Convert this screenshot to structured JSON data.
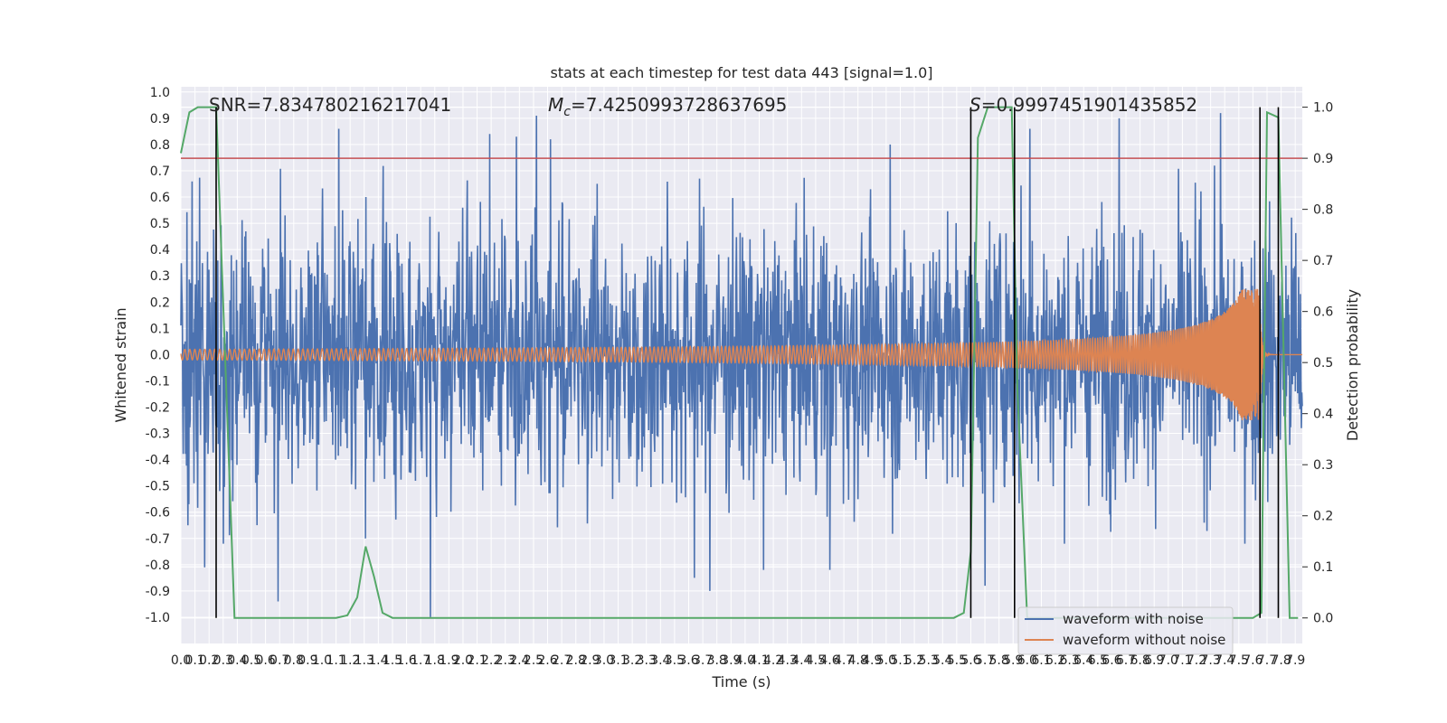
{
  "chart_data": {
    "type": "line",
    "title": "stats at each timestep for test data 443 [signal=1.0]",
    "xlabel": "Time (s)",
    "ylabel": "Whitened strain",
    "ylabel_right": "Detection probability",
    "xlim": [
      0.0,
      7.95
    ],
    "ylim": [
      -1.1,
      1.02
    ],
    "ylim_right": [
      -0.05,
      1.04
    ],
    "xticks": [
      "0.0",
      "0.1",
      "0.2",
      "0.3",
      "0.4",
      "0.5",
      "0.6",
      "0.7",
      "0.8",
      "0.9",
      "1.0",
      "1.1",
      "1.2",
      "1.3",
      "1.4",
      "1.5",
      "1.6",
      "1.7",
      "1.8",
      "1.9",
      "2.0",
      "2.1",
      "2.2",
      "2.3",
      "2.4",
      "2.5",
      "2.6",
      "2.7",
      "2.8",
      "2.9",
      "3.0",
      "3.1",
      "3.2",
      "3.3",
      "3.4",
      "3.5",
      "3.6",
      "3.7",
      "3.8",
      "3.9",
      "4.0",
      "4.1",
      "4.2",
      "4.3",
      "4.4",
      "4.5",
      "4.6",
      "4.7",
      "4.8",
      "4.9",
      "5.0",
      "5.1",
      "5.2",
      "5.3",
      "5.4",
      "5.5",
      "5.6",
      "5.7",
      "5.8",
      "5.9",
      "6.0",
      "6.1",
      "6.2",
      "6.3",
      "6.4",
      "6.5",
      "6.6",
      "6.7",
      "6.8",
      "6.9",
      "7.0",
      "7.1",
      "7.2",
      "7.3",
      "7.4",
      "7.5",
      "7.6",
      "7.7",
      "7.8",
      "7.9"
    ],
    "yticks": [
      "1.0",
      "0.9",
      "0.8",
      "0.7",
      "0.6",
      "0.5",
      "0.4",
      "0.3",
      "0.2",
      "0.1",
      "0.0",
      "-0.1",
      "-0.2",
      "-0.3",
      "-0.4",
      "-0.5",
      "-0.6",
      "-0.7",
      "-0.8",
      "-0.9",
      "-1.0"
    ],
    "yticks_right": [
      "1.0",
      "0.9",
      "0.8",
      "0.7",
      "0.6",
      "0.5",
      "0.4",
      "0.3",
      "0.2",
      "0.1",
      "0.0"
    ],
    "annotations": {
      "snr": "SNR=7.834780216217041",
      "mc_symbol": "M",
      "mc_sub": "c",
      "mc_value": "=7.4250993728637695",
      "s_symbol": "S",
      "s_value": "=0.9997451901435852"
    },
    "legend": {
      "placement": "lower-right",
      "entries": [
        "waveform with noise",
        "waveform without noise"
      ]
    },
    "threshold": {
      "axis": "right",
      "value": 0.9,
      "color": "#c44e52"
    },
    "event_markers_x": [
      0.25,
      5.6,
      5.91,
      7.65,
      7.78
    ],
    "series": [
      {
        "name": "waveform with noise",
        "axis": "left",
        "color": "#4c72b0",
        "description_amplitude": 0.45,
        "spike_peaks": [
          {
            "x": 0.05,
            "y": -0.65
          },
          {
            "x": 0.17,
            "y": -0.81
          },
          {
            "x": 0.69,
            "y": -0.94
          },
          {
            "x": 1.12,
            "y": 0.86
          },
          {
            "x": 1.31,
            "y": -0.7
          },
          {
            "x": 1.77,
            "y": -1.0
          },
          {
            "x": 2.19,
            "y": 0.84
          },
          {
            "x": 2.38,
            "y": 0.83
          },
          {
            "x": 2.52,
            "y": 0.91
          },
          {
            "x": 2.62,
            "y": 0.82
          },
          {
            "x": 3.64,
            "y": -0.85
          },
          {
            "x": 3.75,
            "y": -0.9
          },
          {
            "x": 4.13,
            "y": -0.82
          },
          {
            "x": 4.6,
            "y": -0.82
          },
          {
            "x": 5.03,
            "y": 0.8
          },
          {
            "x": 5.7,
            "y": -0.88
          },
          {
            "x": 6.02,
            "y": 0.86
          },
          {
            "x": 6.65,
            "y": 0.9
          },
          {
            "x": 7.37,
            "y": 0.92
          },
          {
            "x": 7.77,
            "y": -0.28
          }
        ]
      },
      {
        "name": "waveform without noise",
        "axis": "left",
        "color": "#dd8452",
        "description_amplitude": 0.02,
        "merger_time": 7.65,
        "peak_amplitude": 0.25
      },
      {
        "name": "",
        "axis": "right",
        "color": "#55a868",
        "x": [
          0.0,
          0.06,
          0.12,
          0.25,
          0.38,
          1.1,
          1.18,
          1.25,
          1.31,
          1.37,
          1.43,
          1.5,
          5.48,
          5.55,
          5.6,
          5.65,
          5.72,
          5.89,
          5.93,
          6.0,
          7.6,
          7.66,
          7.7,
          7.78,
          7.86,
          7.92
        ],
        "values": [
          0.91,
          0.99,
          1.0,
          1.0,
          0.0,
          0.0,
          0.005,
          0.04,
          0.14,
          0.08,
          0.01,
          0.0,
          0.0,
          0.01,
          0.13,
          0.94,
          1.0,
          1.0,
          0.45,
          0.0,
          0.0,
          0.01,
          0.99,
          0.98,
          0.0,
          0.0
        ]
      }
    ],
    "grid": true,
    "colors": {
      "plot_background": "#eaeaf2",
      "grid": "#ffffff",
      "markers": "#000000"
    }
  }
}
